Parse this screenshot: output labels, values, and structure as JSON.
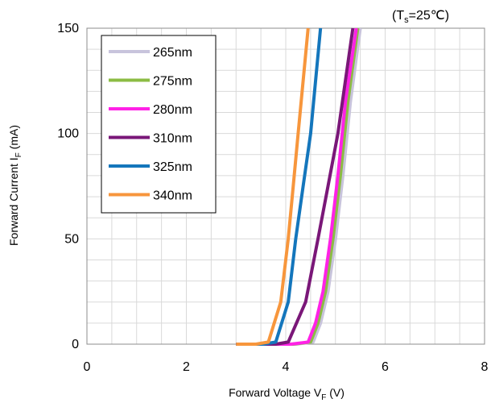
{
  "chart_data": {
    "type": "line",
    "xlabel_main": "Forward Voltage V",
    "xlabel_sub": "F",
    "xlabel_unit": " (V)",
    "ylabel_main": "Forward Current I",
    "ylabel_sub": "F",
    "ylabel_unit": " (mA)",
    "annotation_open": "(T",
    "annotation_sub": "s",
    "annotation_rest": "=25℃)",
    "xlim": [
      0,
      8
    ],
    "ylim": [
      0,
      150
    ],
    "x_ticks": [
      "0",
      "2",
      "4",
      "6",
      "8"
    ],
    "y_ticks": [
      "0",
      "50",
      "100",
      "150"
    ],
    "x_tick_values": [
      0,
      2,
      4,
      6,
      8
    ],
    "y_tick_values": [
      0,
      50,
      100,
      150
    ],
    "grid": true,
    "legend_position": "top-left",
    "series": [
      {
        "name": "265nm",
        "color": "#c8c4dc",
        "x": [
          3.0,
          4.2,
          4.55,
          4.7,
          4.85,
          5.0,
          5.15,
          5.3,
          5.5
        ],
        "y": [
          0,
          0,
          1,
          10,
          25,
          50,
          80,
          115,
          150
        ]
      },
      {
        "name": "275nm",
        "color": "#8cbc44",
        "x": [
          3.0,
          4.15,
          4.5,
          4.65,
          4.8,
          4.95,
          5.1,
          5.25,
          5.45
        ],
        "y": [
          0,
          0,
          1,
          10,
          25,
          50,
          80,
          115,
          150
        ]
      },
      {
        "name": "280nm",
        "color": "#ff22e6",
        "x": [
          3.0,
          4.1,
          4.45,
          4.6,
          4.75,
          4.9,
          5.05,
          5.2,
          5.42
        ],
        "y": [
          0,
          0,
          1,
          10,
          25,
          50,
          80,
          115,
          150
        ]
      },
      {
        "name": "310nm",
        "color": "#7a1778",
        "x": [
          3.0,
          3.8,
          4.05,
          4.4,
          4.65,
          4.85,
          5.05,
          5.35
        ],
        "y": [
          0,
          0,
          1,
          20,
          50,
          75,
          100,
          150
        ]
      },
      {
        "name": "325nm",
        "color": "#1476bc",
        "x": [
          3.0,
          3.55,
          3.8,
          4.05,
          4.2,
          4.35,
          4.5,
          4.7
        ],
        "y": [
          0,
          0,
          1,
          20,
          50,
          75,
          100,
          150
        ]
      },
      {
        "name": "340nm",
        "color": "#f7963c",
        "x": [
          3.0,
          3.4,
          3.65,
          3.9,
          4.05,
          4.15,
          4.25,
          4.45
        ],
        "y": [
          0,
          0,
          1,
          20,
          50,
          75,
          100,
          150
        ]
      }
    ]
  }
}
